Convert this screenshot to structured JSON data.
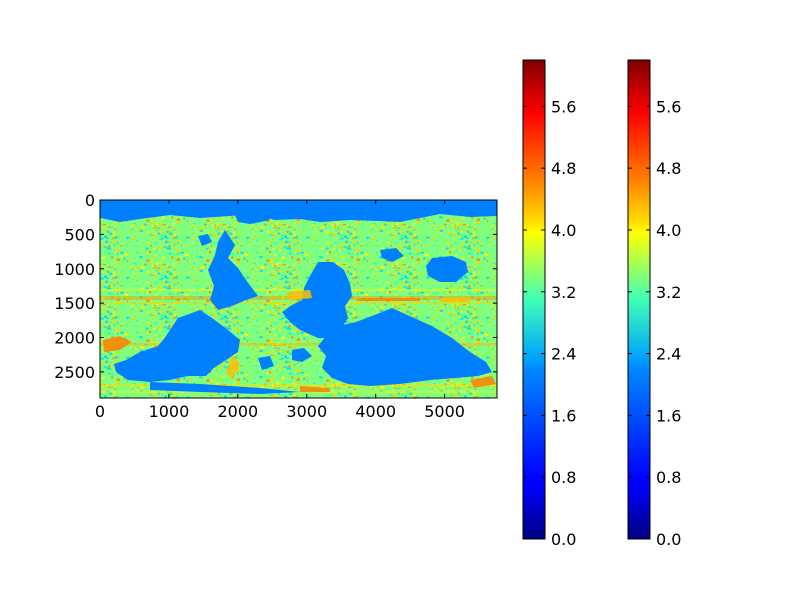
{
  "chart_data": {
    "type": "heatmap",
    "title": "",
    "xlabel": "",
    "ylabel": "",
    "image": {
      "x_range": [
        0,
        5760
      ],
      "y_range": [
        0,
        2880
      ],
      "y_inverted": true,
      "x_ticks": [
        0,
        1000,
        2000,
        3000,
        4000,
        5000
      ],
      "x_tick_labels": [
        "0",
        "1000",
        "2000",
        "3000",
        "4000",
        "5000"
      ],
      "y_ticks": [
        0,
        500,
        1000,
        1500,
        2000,
        2500
      ],
      "y_tick_labels": [
        "0",
        "500",
        "1000",
        "1500",
        "2000",
        "2500"
      ],
      "colormap": "jet",
      "land_value": 1.6,
      "description_of_values": "land masses rendered near 1.6 (blue); ocean texture varies 2.4–5.0 (cyan–orange)"
    },
    "colorbars": [
      {
        "range": [
          0,
          6.2
        ],
        "ticks": [
          0.0,
          0.8,
          1.6,
          2.4,
          3.2,
          4.0,
          4.8,
          5.6
        ],
        "tick_labels": [
          "0.0",
          "0.8",
          "1.6",
          "2.4",
          "3.2",
          "4.0",
          "4.8",
          "5.6"
        ],
        "colormap": "jet"
      },
      {
        "range": [
          0,
          6.2
        ],
        "ticks": [
          0.0,
          0.8,
          1.6,
          2.4,
          3.2,
          4.0,
          4.8,
          5.6
        ],
        "tick_labels": [
          "0.0",
          "0.8",
          "1.6",
          "2.4",
          "3.2",
          "4.0",
          "4.8",
          "5.6"
        ],
        "colormap": "jet"
      }
    ],
    "colors": {
      "jet_stops": [
        "#00007f",
        "#0000ff",
        "#007fff",
        "#00ffff",
        "#7fff7f",
        "#ffff00",
        "#ff7f00",
        "#ff0000",
        "#7f0000"
      ],
      "land": "#0080ff",
      "axes": "#000000",
      "background": "#ffffff"
    }
  }
}
